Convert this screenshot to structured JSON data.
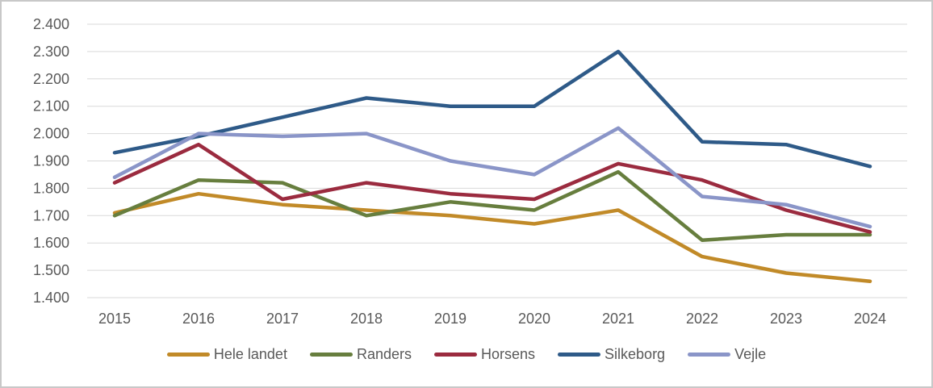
{
  "chart_data": {
    "type": "line",
    "title": "",
    "xlabel": "",
    "ylabel": "",
    "categories": [
      "2015",
      "2016",
      "2017",
      "2018",
      "2019",
      "2020",
      "2021",
      "2022",
      "2023",
      "2024"
    ],
    "series": [
      {
        "name": "Hele landet",
        "color": "#C18A28",
        "values": [
          1.71,
          1.78,
          1.74,
          1.72,
          1.7,
          1.67,
          1.72,
          1.55,
          1.49,
          1.46
        ]
      },
      {
        "name": "Randers",
        "color": "#677E3E",
        "values": [
          1.7,
          1.83,
          1.82,
          1.7,
          1.75,
          1.72,
          1.86,
          1.61,
          1.63,
          1.63
        ]
      },
      {
        "name": "Horsens",
        "color": "#9B2B3F",
        "values": [
          1.82,
          1.96,
          1.76,
          1.82,
          1.78,
          1.76,
          1.89,
          1.83,
          1.72,
          1.64
        ]
      },
      {
        "name": "Silkeborg",
        "color": "#2E5A88",
        "values": [
          1.93,
          1.99,
          2.06,
          2.13,
          2.1,
          2.1,
          2.3,
          1.97,
          1.96,
          1.88
        ]
      },
      {
        "name": "Vejle",
        "color": "#8A95C8",
        "values": [
          1.84,
          2.0,
          1.99,
          2.0,
          1.9,
          1.85,
          2.02,
          1.77,
          1.74,
          1.66
        ]
      }
    ],
    "y_ticks": [
      "2.400",
      "2.300",
      "2.200",
      "2.100",
      "2.000",
      "1.900",
      "1.800",
      "1.700",
      "1.600",
      "1.500",
      "1.400"
    ],
    "ylim": [
      1.4,
      2.4
    ],
    "grid": "horizontal",
    "legend_position": "bottom"
  },
  "style": {
    "gridline_color": "#D9D9D9",
    "text_color": "#595959",
    "frame_border_color": "#C8C8C8",
    "background_color": "#FFFFFF"
  }
}
